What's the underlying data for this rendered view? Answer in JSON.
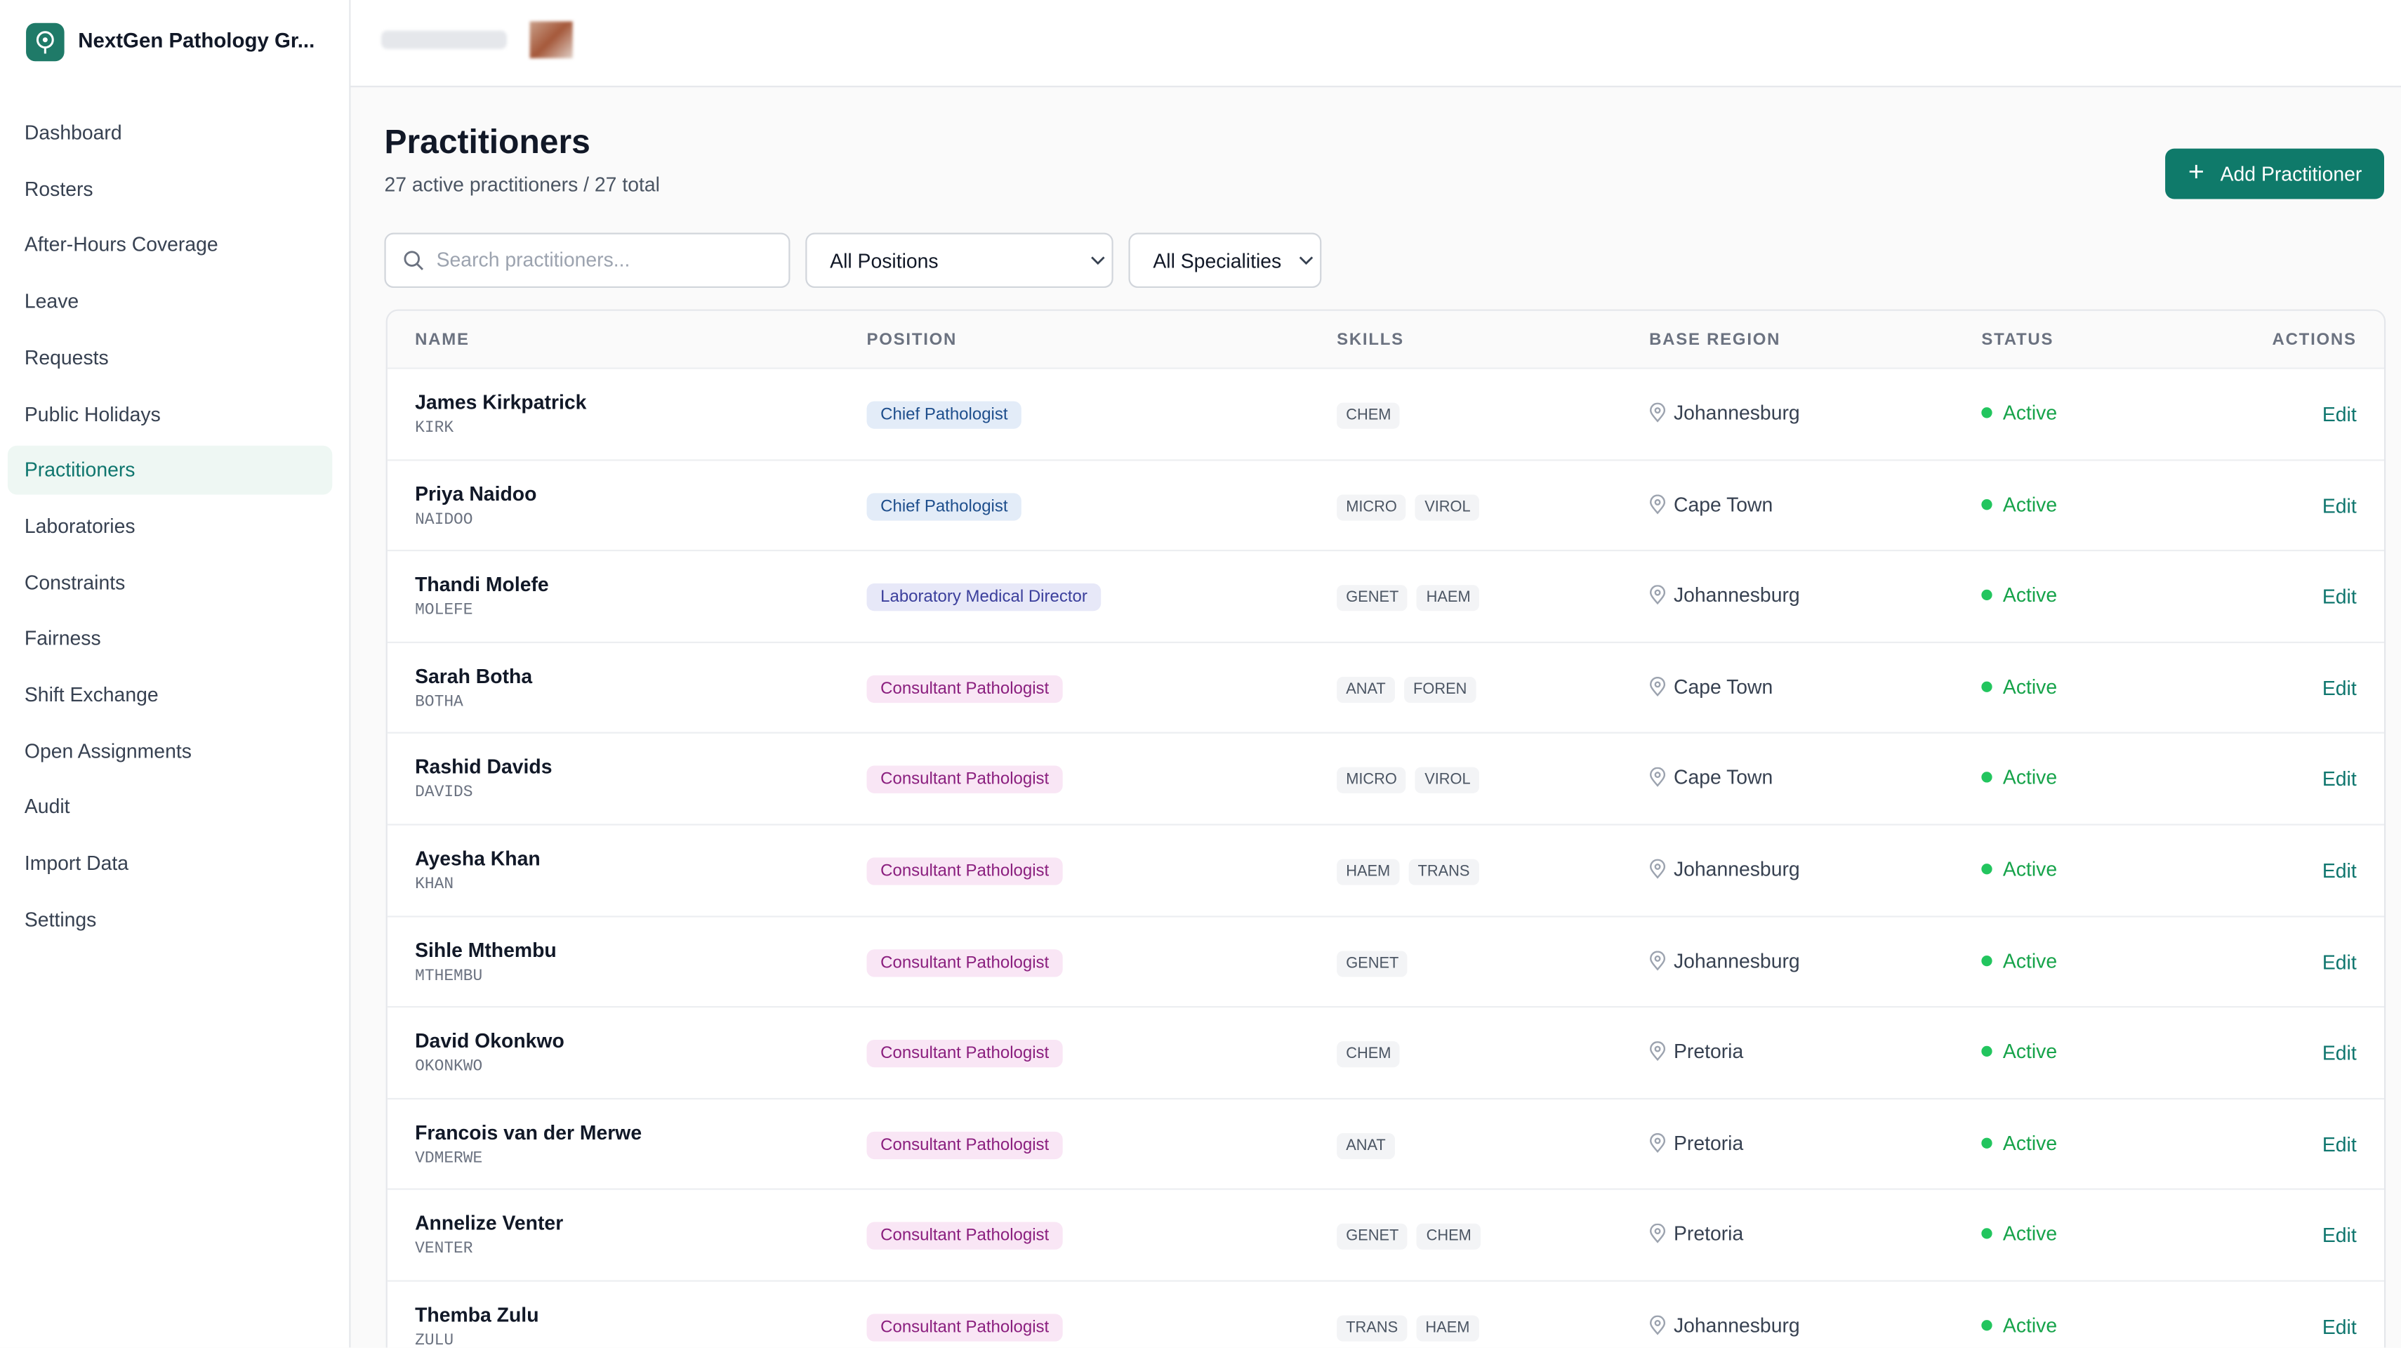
{
  "sidebar": {
    "app_name": "NextGen Pathology Gr...",
    "nav": [
      "Dashboard",
      "Rosters",
      "After-Hours Coverage",
      "Leave",
      "Requests",
      "Public Holidays",
      "Practitioners",
      "Laboratories",
      "Constraints",
      "Fairness",
      "Shift Exchange",
      "Open Assignments",
      "Audit",
      "Import Data",
      "Settings"
    ],
    "active_index": 6
  },
  "header": {
    "title": "Practitioners",
    "subtitle": "27 active practitioners / 27 total",
    "add_button": "Add Practitioner"
  },
  "filters": {
    "search_placeholder": "Search practitioners...",
    "position": "All Positions",
    "speciality": "All Specialities"
  },
  "table": {
    "columns": [
      "NAME",
      "POSITION",
      "SKILLS",
      "BASE REGION",
      "STATUS",
      "ACTIONS"
    ],
    "rows": [
      {
        "name": "James Kirkpatrick",
        "code": "KIRK",
        "position": "Chief Pathologist",
        "badge_color": "#1e4e8c",
        "badge_bg": "#e3ecf8",
        "skills": [
          "CHEM"
        ],
        "region": "Johannesburg",
        "status": "Active",
        "action": "Edit"
      },
      {
        "name": "Priya Naidoo",
        "code": "NAIDOO",
        "position": "Chief Pathologist",
        "badge_color": "#1e4e8c",
        "badge_bg": "#e3ecf8",
        "skills": [
          "MICRO",
          "VIROL"
        ],
        "region": "Cape Town",
        "status": "Active",
        "action": "Edit"
      },
      {
        "name": "Thandi Molefe",
        "code": "MOLEFE",
        "position": "Laboratory Medical Director",
        "badge_color": "#3b3f9c",
        "badge_bg": "#e7e8f8",
        "skills": [
          "GENET",
          "HAEM"
        ],
        "region": "Johannesburg",
        "status": "Active",
        "action": "Edit"
      },
      {
        "name": "Sarah Botha",
        "code": "BOTHA",
        "position": "Consultant Pathologist",
        "badge_color": "#8a1e7e",
        "badge_bg": "#f9e6f5",
        "skills": [
          "ANAT",
          "FOREN"
        ],
        "region": "Cape Town",
        "status": "Active",
        "action": "Edit"
      },
      {
        "name": "Rashid Davids",
        "code": "DAVIDS",
        "position": "Consultant Pathologist",
        "badge_color": "#8a1e7e",
        "badge_bg": "#f9e6f5",
        "skills": [
          "MICRO",
          "VIROL"
        ],
        "region": "Cape Town",
        "status": "Active",
        "action": "Edit"
      },
      {
        "name": "Ayesha Khan",
        "code": "KHAN",
        "position": "Consultant Pathologist",
        "badge_color": "#8a1e7e",
        "badge_bg": "#f9e6f5",
        "skills": [
          "HAEM",
          "TRANS"
        ],
        "region": "Johannesburg",
        "status": "Active",
        "action": "Edit"
      },
      {
        "name": "Sihle Mthembu",
        "code": "MTHEMBU",
        "position": "Consultant Pathologist",
        "badge_color": "#8a1e7e",
        "badge_bg": "#f9e6f5",
        "skills": [
          "GENET"
        ],
        "region": "Johannesburg",
        "status": "Active",
        "action": "Edit"
      },
      {
        "name": "David Okonkwo",
        "code": "OKONKWO",
        "position": "Consultant Pathologist",
        "badge_color": "#8a1e7e",
        "badge_bg": "#f9e6f5",
        "skills": [
          "CHEM"
        ],
        "region": "Pretoria",
        "status": "Active",
        "action": "Edit"
      },
      {
        "name": "Francois van der Merwe",
        "code": "VDMERWE",
        "position": "Consultant Pathologist",
        "badge_color": "#8a1e7e",
        "badge_bg": "#f9e6f5",
        "skills": [
          "ANAT"
        ],
        "region": "Pretoria",
        "status": "Active",
        "action": "Edit"
      },
      {
        "name": "Annelize Venter",
        "code": "VENTER",
        "position": "Consultant Pathologist",
        "badge_color": "#8a1e7e",
        "badge_bg": "#f9e6f5",
        "skills": [
          "GENET",
          "CHEM"
        ],
        "region": "Pretoria",
        "status": "Active",
        "action": "Edit"
      },
      {
        "name": "Themba Zulu",
        "code": "ZULU",
        "position": "Consultant Pathologist",
        "badge_color": "#8a1e7e",
        "badge_bg": "#f9e6f5",
        "skills": [
          "TRANS",
          "HAEM"
        ],
        "region": "Johannesburg",
        "status": "Active",
        "action": "Edit"
      }
    ]
  }
}
